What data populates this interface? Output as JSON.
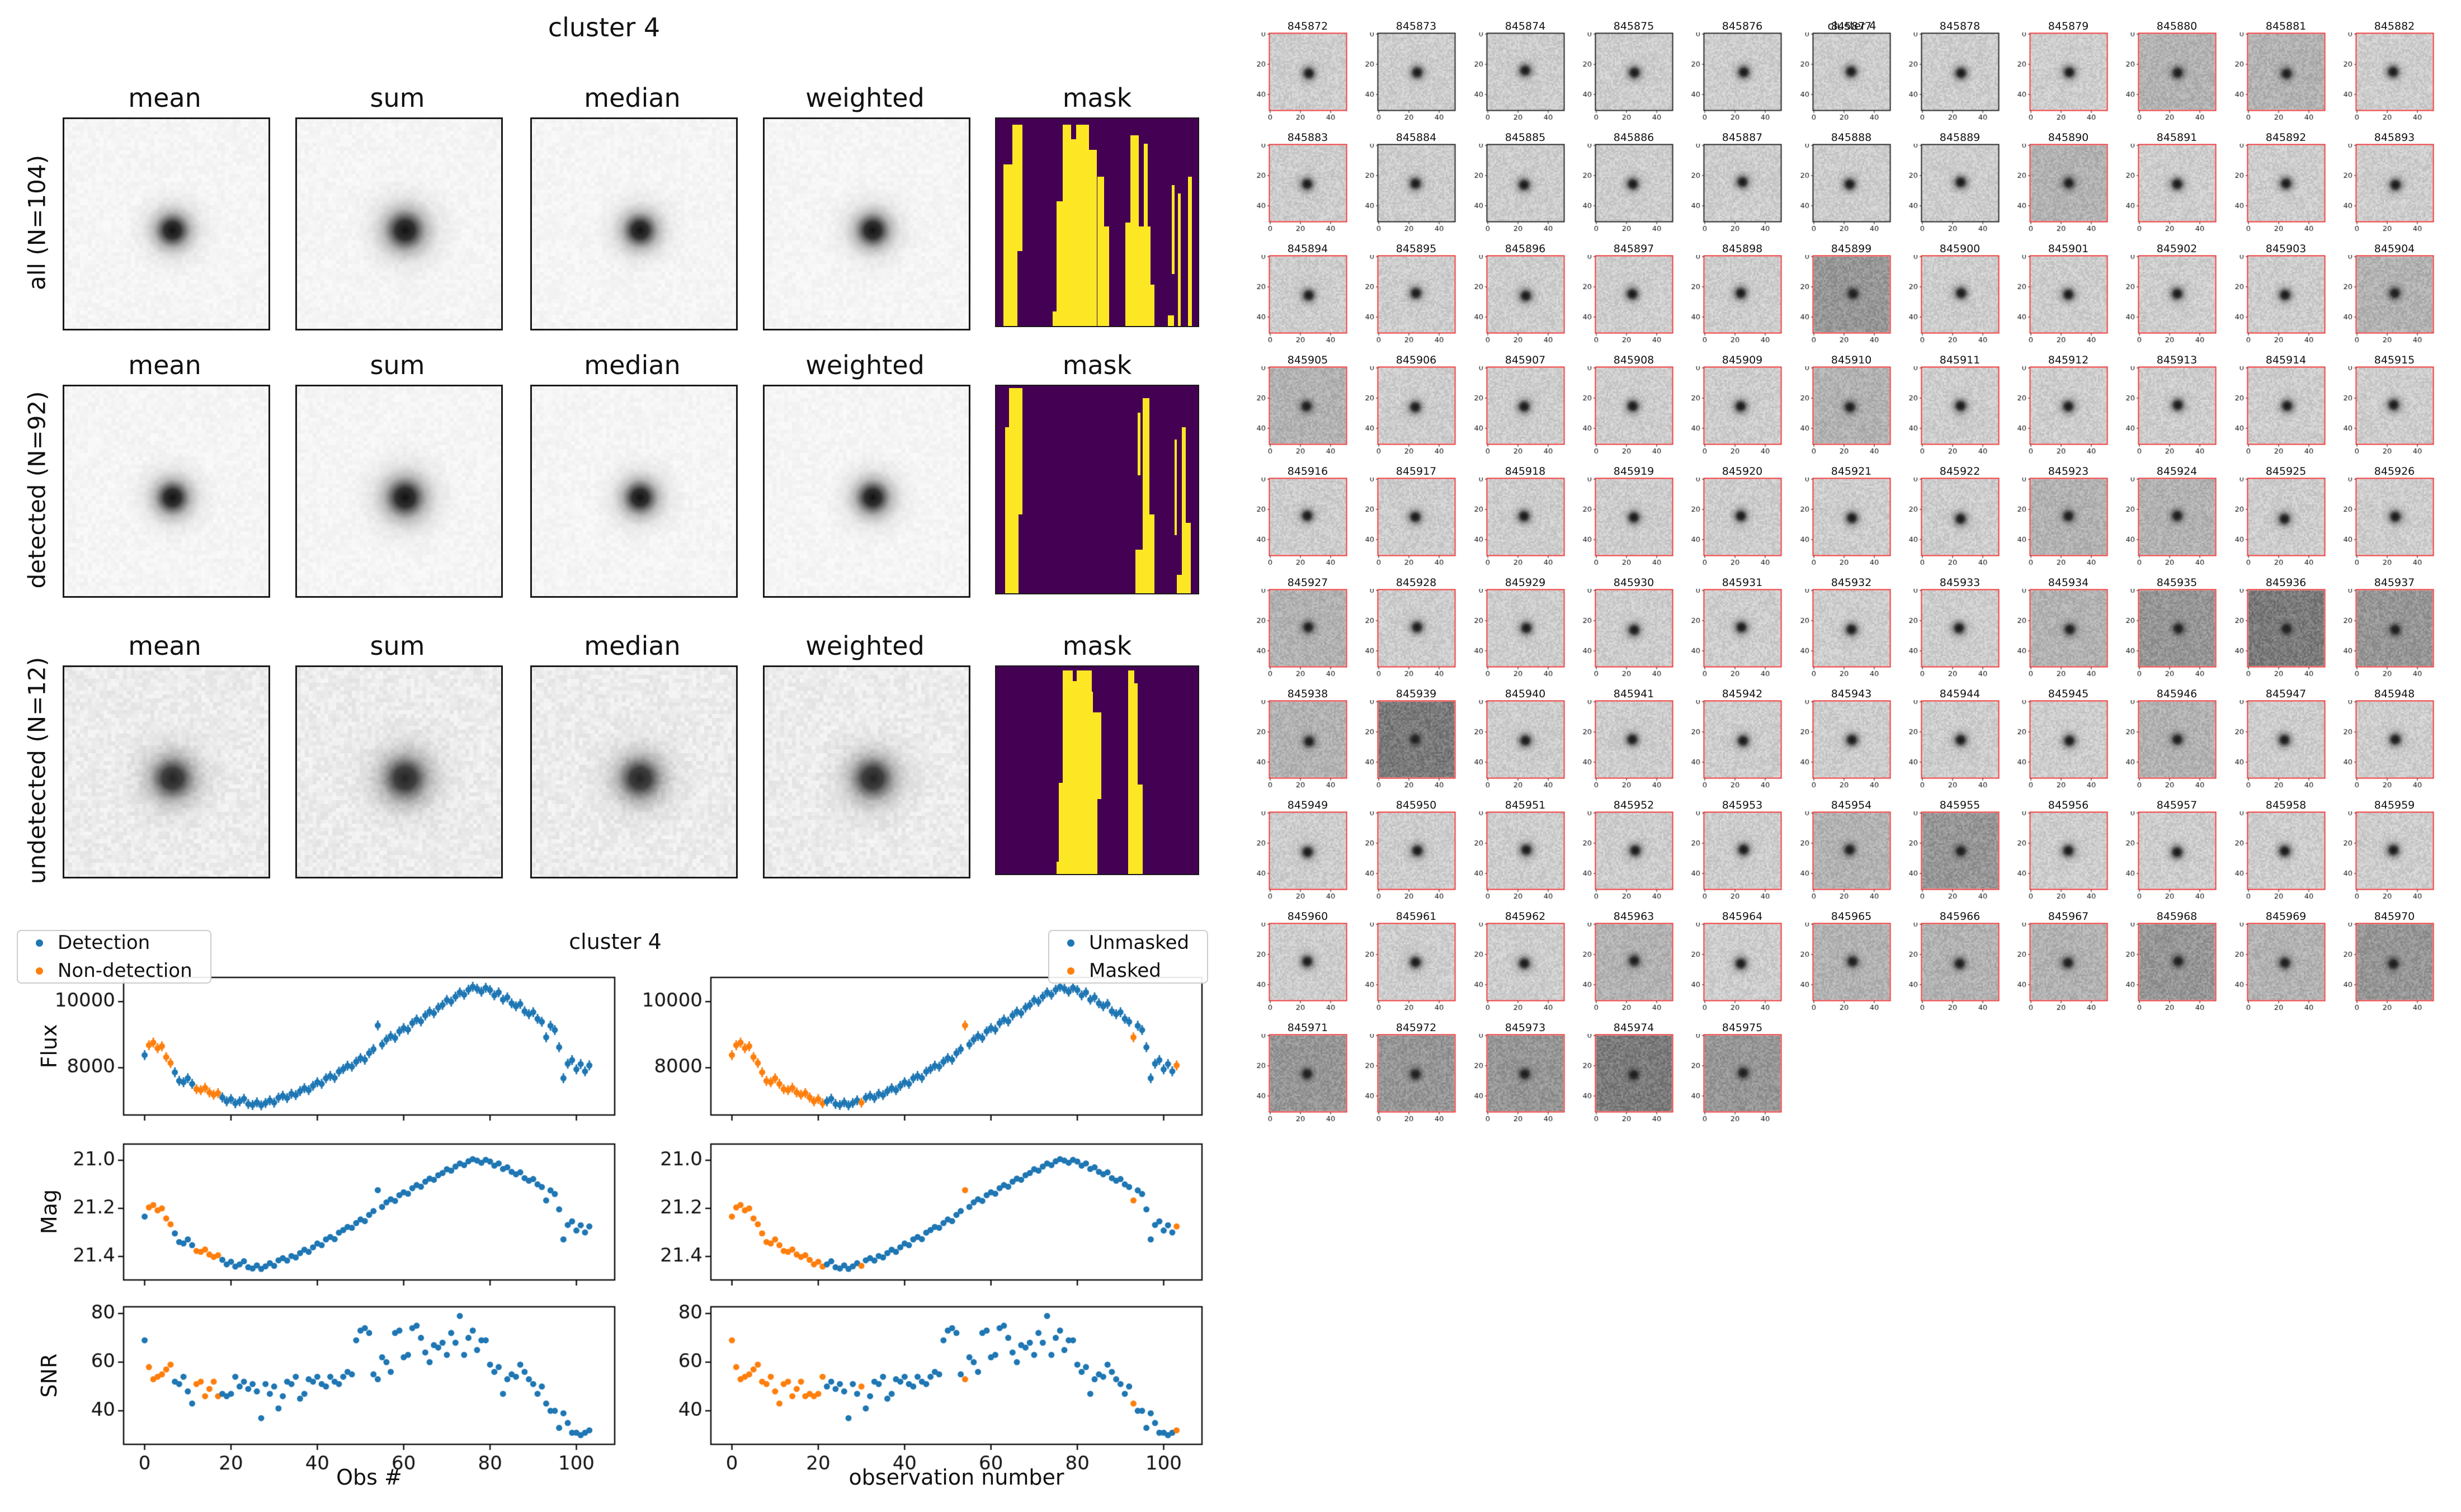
{
  "figure1": {
    "title": "cluster 4",
    "col_headers": [
      "mean",
      "sum",
      "median",
      "weighted",
      "mask"
    ],
    "rows": [
      {
        "label": "all (N=104)",
        "kind": "all"
      },
      {
        "label": "detected (N=92)",
        "kind": "detected"
      },
      {
        "label": "undetected (N=12)",
        "kind": "undetected"
      }
    ],
    "mask_colors": {
      "purple": "#440154",
      "yellow": "#fde725"
    },
    "masks": {
      "all": [
        [
          1,
          3.5,
          22,
          4.5,
          78
        ],
        [
          1,
          8,
          3,
          5,
          97
        ],
        [
          0,
          10.5,
          64,
          2.5,
          36
        ],
        [
          1,
          28,
          93,
          2.5,
          7
        ],
        [
          1,
          30,
          40,
          3,
          60
        ],
        [
          1,
          33,
          3,
          13,
          97
        ],
        [
          0,
          37,
          3,
          2.5,
          7
        ],
        [
          1,
          44,
          3,
          2,
          14
        ],
        [
          1,
          46,
          15,
          4,
          85
        ],
        [
          1,
          50,
          28,
          3.5,
          72
        ],
        [
          1,
          53.5,
          52,
          2.5,
          48
        ],
        [
          1,
          64,
          50,
          2.5,
          50
        ],
        [
          1,
          66.5,
          8,
          4,
          92
        ],
        [
          1,
          70.5,
          52,
          6,
          48
        ],
        [
          1,
          73,
          12,
          2,
          40
        ],
        [
          1,
          76.5,
          80,
          2,
          20
        ],
        [
          1,
          87,
          32,
          1.5,
          43
        ],
        [
          1,
          90,
          36,
          1.5,
          64
        ],
        [
          1,
          95,
          28,
          2,
          72
        ],
        [
          1,
          85,
          95,
          3,
          5
        ]
      ],
      "detected": [
        [
          1,
          4.5,
          20,
          2,
          80
        ],
        [
          1,
          6.5,
          1,
          6.5,
          99
        ],
        [
          0,
          11,
          62,
          2,
          38
        ],
        [
          1,
          70,
          13,
          1.5,
          30
        ],
        [
          1,
          72.5,
          6,
          3.5,
          94
        ],
        [
          1,
          76,
          62,
          2.5,
          38
        ],
        [
          1,
          69,
          79,
          3.5,
          21
        ],
        [
          1,
          88.3,
          26,
          1.3,
          46
        ],
        [
          1,
          92,
          20,
          2,
          80
        ],
        [
          1,
          94,
          66,
          2.5,
          34
        ],
        [
          1,
          89.5,
          91,
          2.5,
          9
        ]
      ],
      "undetected": [
        [
          1,
          33,
          2,
          15,
          98
        ],
        [
          0,
          38,
          2,
          2,
          5
        ],
        [
          0,
          47.5,
          2,
          2,
          10
        ],
        [
          1,
          48,
          22,
          4,
          78
        ],
        [
          1,
          31,
          56,
          2,
          44
        ],
        [
          1,
          30,
          94,
          2,
          6
        ],
        [
          0,
          50,
          64,
          2,
          36
        ],
        [
          1,
          65.5,
          2,
          3,
          98
        ],
        [
          1,
          68.5,
          8,
          1.5,
          92
        ],
        [
          1,
          70,
          57,
          2.5,
          43
        ],
        [
          0,
          63.5,
          45,
          2,
          12
        ]
      ]
    }
  },
  "figure2": {
    "title": "cluster 4",
    "legend_left": [
      "Detection",
      "Non-detection"
    ],
    "legend_right": [
      "Unmasked",
      "Masked"
    ],
    "ylabels": [
      "Flux",
      "Mag",
      "SNR"
    ],
    "xlabel_left": "Obs #",
    "xlabel_right": "observation number",
    "colors": {
      "primary": "#1f77b4",
      "secondary": "#ff7f0e"
    }
  },
  "chart_data": {
    "type": "scatter",
    "title": "cluster 4",
    "xlabel_left": "Obs #",
    "xlabel_right": "observation number",
    "xlim": [
      -5,
      109
    ],
    "xticks": [
      0,
      20,
      40,
      60,
      80,
      100
    ],
    "xticklabels": [
      "0",
      "20",
      "40",
      "60",
      "80",
      "100"
    ],
    "flux_ylim": [
      6550,
      10750
    ],
    "flux_yticks": [
      8000,
      10000
    ],
    "flux_yticklabels": [
      "8000",
      "10000"
    ],
    "flux_err": 150,
    "mag_ylim": [
      21.5,
      20.93
    ],
    "mag_yticks": [
      21.0,
      21.2,
      21.4
    ],
    "mag_yticklabels": [
      "21.0",
      "21.2",
      "21.4"
    ],
    "snr_ylim": [
      26,
      83
    ],
    "snr_yticks": [
      40,
      60,
      80
    ],
    "snr_yticklabels": [
      "40",
      "60",
      "80"
    ],
    "flux": [
      8380,
      8680,
      8760,
      8590,
      8650,
      8320,
      8140,
      7860,
      7600,
      7560,
      7680,
      7510,
      7350,
      7320,
      7390,
      7250,
      7180,
      7230,
      7100,
      6980,
      7050,
      6920,
      6980,
      7060,
      6900,
      6870,
      6950,
      6860,
      6930,
      7010,
      6940,
      7090,
      7150,
      7080,
      7210,
      7170,
      7290,
      7380,
      7320,
      7450,
      7560,
      7510,
      7680,
      7750,
      7690,
      7880,
      7960,
      8060,
      8030,
      8180,
      8290,
      8240,
      8440,
      8560,
      9280,
      8700,
      8850,
      8960,
      8900,
      9100,
      9200,
      9150,
      9350,
      9460,
      9400,
      9580,
      9700,
      9650,
      9820,
      9900,
      10050,
      10000,
      10150,
      10280,
      10210,
      10360,
      10450,
      10390,
      10300,
      10420,
      10350,
      10190,
      10280,
      10060,
      10130,
      9950,
      9860,
      9930,
      9710,
      9620,
      9680,
      9480,
      9390,
      8920,
      9270,
      9140,
      8620,
      7680,
      8120,
      8230,
      7950,
      8110,
      7890,
      8070
    ],
    "mag": [
      21.234,
      21.196,
      21.186,
      21.208,
      21.2,
      21.242,
      21.266,
      21.304,
      21.34,
      21.346,
      21.329,
      21.353,
      21.377,
      21.381,
      21.371,
      21.392,
      21.402,
      21.395,
      21.414,
      21.433,
      21.422,
      21.442,
      21.433,
      21.42,
      21.445,
      21.45,
      21.437,
      21.452,
      21.441,
      21.428,
      21.439,
      21.416,
      21.407,
      21.417,
      21.398,
      21.404,
      21.386,
      21.372,
      21.381,
      21.362,
      21.346,
      21.353,
      21.329,
      21.319,
      21.328,
      21.301,
      21.29,
      21.277,
      21.281,
      21.261,
      21.246,
      21.253,
      21.227,
      21.211,
      21.124,
      21.194,
      21.175,
      21.162,
      21.169,
      21.145,
      21.133,
      21.139,
      21.116,
      21.103,
      21.11,
      21.089,
      21.076,
      21.081,
      21.062,
      21.053,
      21.037,
      21.043,
      21.026,
      21.013,
      21.02,
      21.004,
      20.995,
      21.001,
      21.01,
      20.998,
      21.005,
      21.022,
      21.013,
      21.036,
      21.029,
      21.048,
      21.058,
      21.05,
      21.074,
      21.085,
      21.078,
      21.1,
      21.111,
      21.167,
      21.125,
      21.14,
      21.204,
      21.329,
      21.269,
      21.254,
      21.292,
      21.27,
      21.3,
      21.275
    ],
    "snr": [
      69,
      58,
      53,
      54,
      55,
      57,
      59,
      52,
      51,
      54,
      48,
      43,
      51,
      52,
      46,
      49,
      52,
      46,
      47,
      46,
      47,
      54,
      50,
      52,
      49,
      51,
      48,
      37,
      51,
      47,
      50,
      41,
      46,
      52,
      51,
      54,
      45,
      47,
      53,
      52,
      54,
      51,
      50,
      54,
      52,
      51,
      54,
      56,
      55,
      69,
      73,
      74,
      72,
      55,
      53,
      62,
      60,
      56,
      72,
      73,
      62,
      63,
      74,
      75,
      70,
      64,
      60,
      67,
      66,
      68,
      63,
      72,
      68,
      79,
      63,
      70,
      73,
      65,
      69,
      69,
      59,
      56,
      58,
      47,
      53,
      55,
      54,
      59,
      56,
      53,
      51,
      47,
      50,
      43,
      40,
      40,
      33,
      39,
      35,
      31,
      31,
      30,
      31,
      32
    ],
    "masked_indices": [
      0,
      1,
      2,
      3,
      4,
      5,
      6,
      7,
      8,
      9,
      10,
      11,
      12,
      13,
      14,
      15,
      16,
      17,
      18,
      19,
      20,
      21,
      30,
      54,
      93,
      103
    ],
    "nondetection_indices": [
      1,
      2,
      3,
      4,
      5,
      6,
      12,
      13,
      14,
      15,
      16,
      17
    ]
  },
  "cutout_grid": {
    "title": "cluster 4",
    "xticks": [
      "0",
      "20",
      "40"
    ],
    "yticks": [
      "0",
      "20",
      "40"
    ],
    "border_colors": {
      "detected": "#e82e2e",
      "undetected": "#1c1c1c"
    },
    "items": [
      [
        "845872",
        "r",
        0
      ],
      [
        "845873",
        "k",
        0
      ],
      [
        "845874",
        "k",
        0
      ],
      [
        "845875",
        "k",
        0
      ],
      [
        "845876",
        "k",
        0
      ],
      [
        "845877",
        "k",
        0
      ],
      [
        "845878",
        "k",
        0
      ],
      [
        "845879",
        "r",
        0
      ],
      [
        "845880",
        "r",
        1
      ],
      [
        "845881",
        "r",
        1
      ],
      [
        "845882",
        "r",
        0
      ],
      [
        "845883",
        "r",
        0
      ],
      [
        "845884",
        "k",
        0
      ],
      [
        "845885",
        "k",
        0
      ],
      [
        "845886",
        "k",
        0
      ],
      [
        "845887",
        "k",
        0
      ],
      [
        "845888",
        "k",
        0
      ],
      [
        "845889",
        "k",
        0
      ],
      [
        "845890",
        "r",
        1
      ],
      [
        "845891",
        "r",
        0
      ],
      [
        "845892",
        "r",
        0
      ],
      [
        "845893",
        "r",
        0
      ],
      [
        "845894",
        "r",
        0
      ],
      [
        "845895",
        "r",
        0
      ],
      [
        "845896",
        "r",
        0
      ],
      [
        "845897",
        "r",
        0
      ],
      [
        "845898",
        "r",
        0
      ],
      [
        "845899",
        "r",
        2
      ],
      [
        "845900",
        "r",
        0
      ],
      [
        "845901",
        "r",
        0
      ],
      [
        "845902",
        "r",
        0
      ],
      [
        "845903",
        "r",
        0
      ],
      [
        "845904",
        "r",
        1
      ],
      [
        "845905",
        "r",
        1
      ],
      [
        "845906",
        "r",
        0
      ],
      [
        "845907",
        "r",
        0
      ],
      [
        "845908",
        "r",
        0
      ],
      [
        "845909",
        "r",
        0
      ],
      [
        "845910",
        "r",
        1
      ],
      [
        "845911",
        "r",
        0
      ],
      [
        "845912",
        "r",
        0
      ],
      [
        "845913",
        "r",
        0
      ],
      [
        "845914",
        "r",
        0
      ],
      [
        "845915",
        "r",
        0
      ],
      [
        "845916",
        "r",
        0
      ],
      [
        "845917",
        "r",
        0
      ],
      [
        "845918",
        "r",
        0
      ],
      [
        "845919",
        "r",
        0
      ],
      [
        "845920",
        "r",
        0
      ],
      [
        "845921",
        "r",
        0
      ],
      [
        "845922",
        "r",
        0
      ],
      [
        "845923",
        "r",
        1
      ],
      [
        "845924",
        "r",
        1
      ],
      [
        "845925",
        "r",
        0
      ],
      [
        "845926",
        "r",
        0
      ],
      [
        "845927",
        "r",
        1
      ],
      [
        "845928",
        "r",
        0
      ],
      [
        "845929",
        "r",
        0
      ],
      [
        "845930",
        "r",
        0
      ],
      [
        "845931",
        "r",
        0
      ],
      [
        "845932",
        "r",
        0
      ],
      [
        "845933",
        "r",
        0
      ],
      [
        "845934",
        "r",
        1
      ],
      [
        "845935",
        "r",
        2
      ],
      [
        "845936",
        "r",
        3
      ],
      [
        "845937",
        "r",
        2
      ],
      [
        "845938",
        "r",
        1
      ],
      [
        "845939",
        "r",
        3
      ],
      [
        "845940",
        "r",
        0
      ],
      [
        "845941",
        "r",
        0
      ],
      [
        "845942",
        "r",
        0
      ],
      [
        "845943",
        "r",
        0
      ],
      [
        "845944",
        "r",
        0
      ],
      [
        "845945",
        "r",
        0
      ],
      [
        "845946",
        "r",
        1
      ],
      [
        "845947",
        "r",
        0
      ],
      [
        "845948",
        "r",
        0
      ],
      [
        "845949",
        "r",
        0
      ],
      [
        "845950",
        "r",
        0
      ],
      [
        "845951",
        "r",
        0
      ],
      [
        "845952",
        "r",
        0
      ],
      [
        "845953",
        "r",
        0
      ],
      [
        "845954",
        "r",
        1
      ],
      [
        "845955",
        "r",
        2
      ],
      [
        "845956",
        "r",
        0
      ],
      [
        "845957",
        "r",
        0
      ],
      [
        "845958",
        "r",
        0
      ],
      [
        "845959",
        "r",
        0
      ],
      [
        "845960",
        "r",
        0
      ],
      [
        "845961",
        "r",
        0
      ],
      [
        "845962",
        "r",
        0
      ],
      [
        "845963",
        "r",
        1
      ],
      [
        "845964",
        "r",
        0
      ],
      [
        "845965",
        "r",
        1
      ],
      [
        "845966",
        "r",
        1
      ],
      [
        "845967",
        "r",
        1
      ],
      [
        "845968",
        "r",
        2
      ],
      [
        "845969",
        "r",
        1
      ],
      [
        "845970",
        "r",
        2
      ],
      [
        "845971",
        "r",
        2
      ],
      [
        "845972",
        "r",
        2
      ],
      [
        "845973",
        "r",
        2
      ],
      [
        "845974",
        "r",
        3
      ],
      [
        "845975",
        "r",
        2
      ]
    ]
  }
}
